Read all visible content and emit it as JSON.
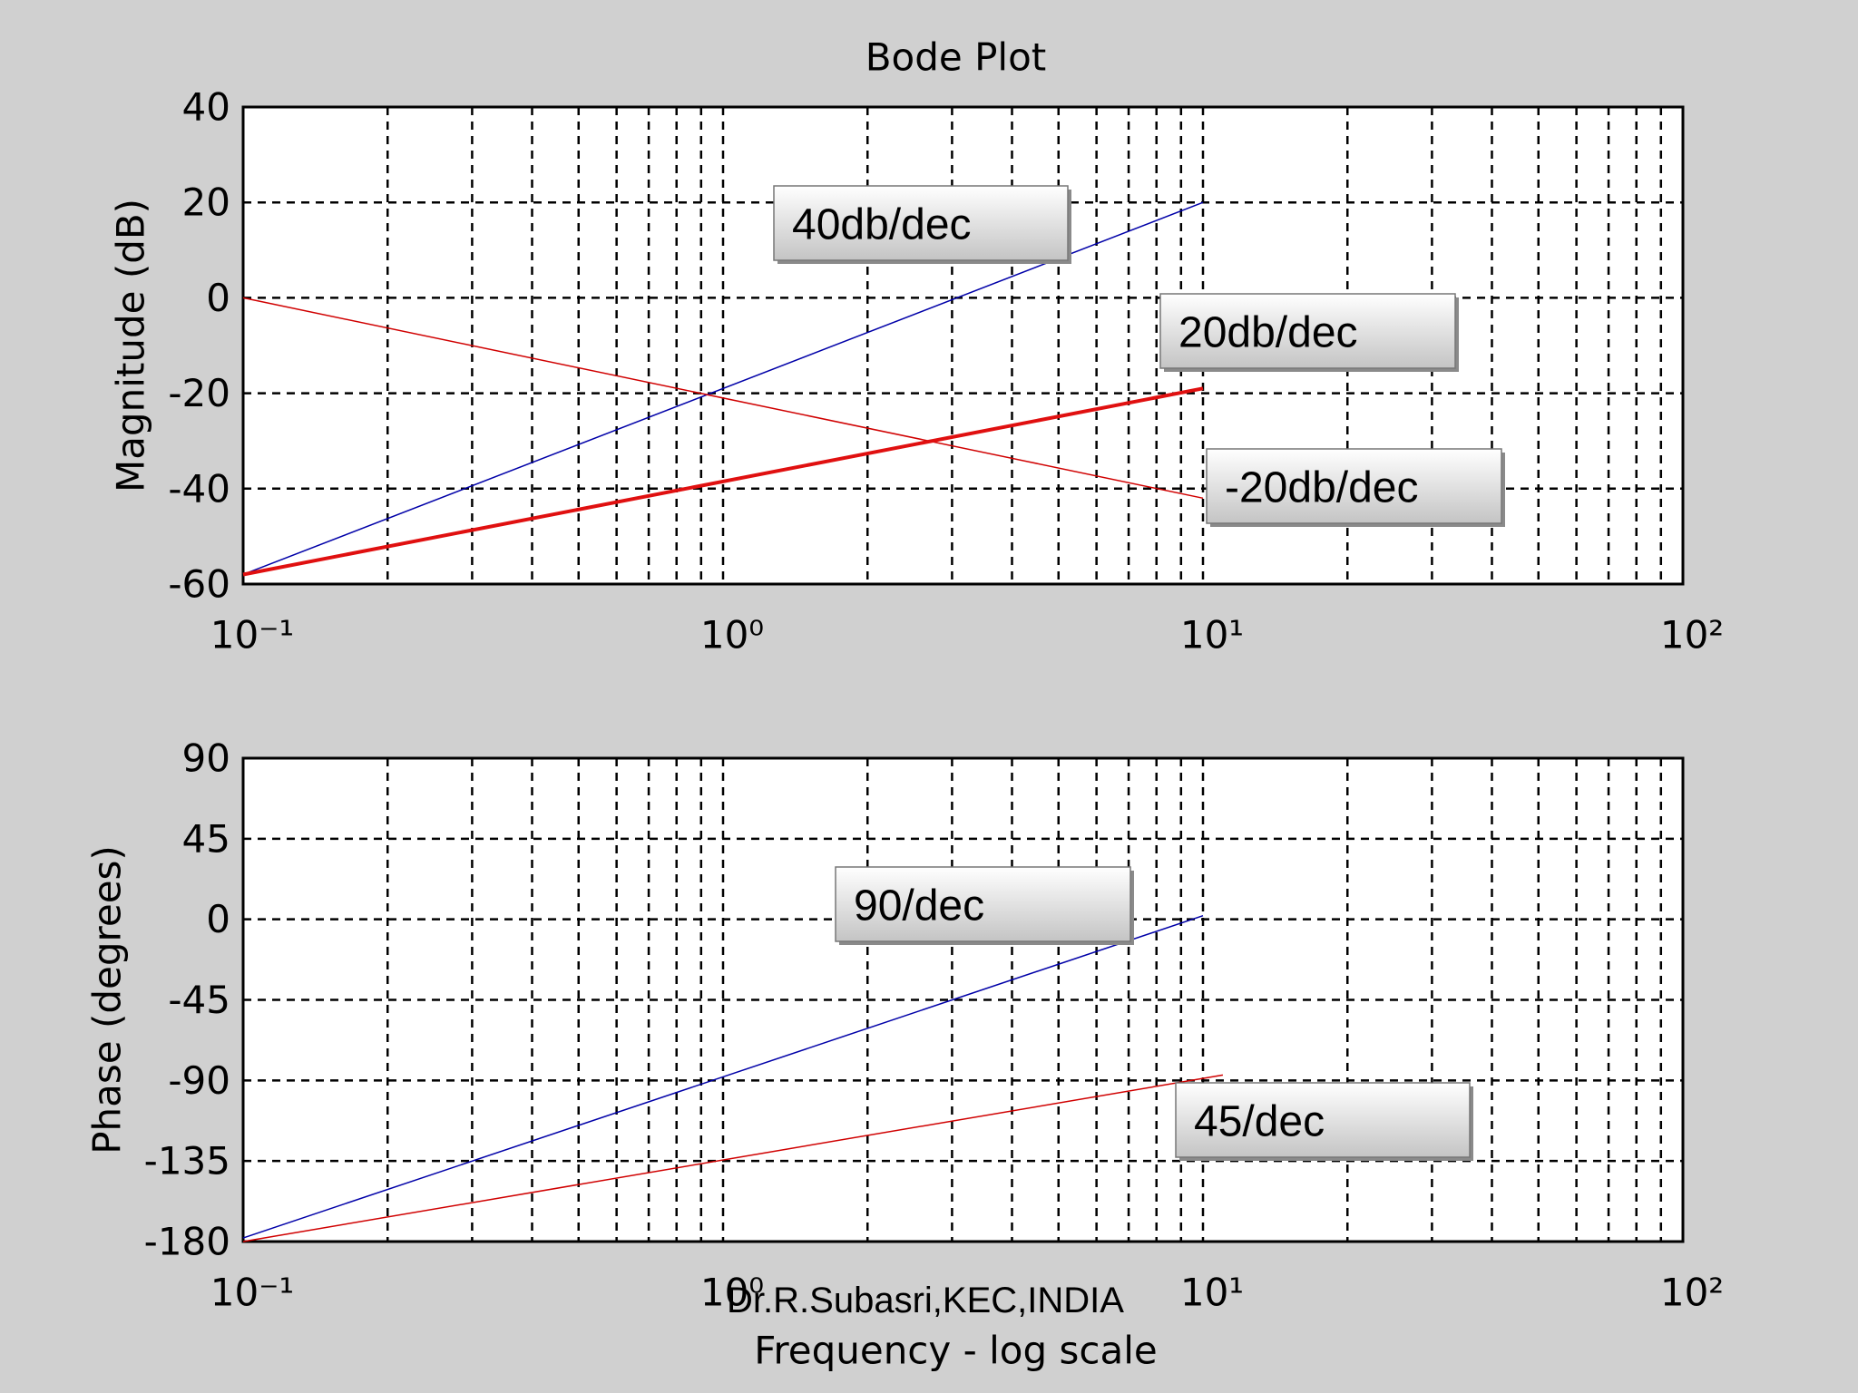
{
  "footer": "Dr.R.Subasri,KEC,INDIA",
  "chart_data": [
    {
      "type": "line",
      "title": "Bode Plot",
      "ylabel": "Magnitude (dB)",
      "xscale": "log",
      "xlim": [
        0.1,
        100
      ],
      "xticks": [
        {
          "value": 0.1,
          "label": "10⁻¹"
        },
        {
          "value": 1,
          "label": "10⁰"
        },
        {
          "value": 10,
          "label": "10¹"
        },
        {
          "value": 100,
          "label": "10²"
        }
      ],
      "ylim": [
        -60,
        40
      ],
      "yticks": [
        -60,
        -40,
        -20,
        0,
        20,
        40
      ],
      "grid": true,
      "series": [
        {
          "color": "#0000a8",
          "width": 1.5,
          "x": [
            0.1,
            10
          ],
          "values": [
            -58,
            20
          ]
        },
        {
          "color": "#d00000",
          "width": 1.5,
          "x": [
            0.1,
            10
          ],
          "values": [
            0,
            -42
          ]
        },
        {
          "color": "#e01010",
          "width": 4,
          "x": [
            0.1,
            10
          ],
          "values": [
            -58,
            -19
          ]
        }
      ],
      "annotations": [
        "40db/dec",
        "20db/dec",
        "-20db/dec"
      ]
    },
    {
      "type": "line",
      "ylabel": "Phase (degrees)",
      "xlabel": "Frequency - log scale",
      "xscale": "log",
      "xlim": [
        0.1,
        100
      ],
      "xticks": [
        {
          "value": 0.1,
          "label": "10⁻¹"
        },
        {
          "value": 1,
          "label": "10⁰"
        },
        {
          "value": 10,
          "label": "10¹"
        },
        {
          "value": 100,
          "label": "10²"
        }
      ],
      "ylim": [
        -180,
        90
      ],
      "yticks": [
        -180,
        -135,
        -90,
        -45,
        0,
        45,
        90
      ],
      "grid": true,
      "series": [
        {
          "color": "#0000a8",
          "width": 1.5,
          "x": [
            0.1,
            10
          ],
          "values": [
            -178,
            2
          ]
        },
        {
          "color": "#d00000",
          "width": 1.5,
          "x": [
            0.1,
            11
          ],
          "values": [
            -180,
            -87
          ]
        }
      ],
      "annotations": [
        "90/dec",
        "45/dec"
      ]
    }
  ]
}
